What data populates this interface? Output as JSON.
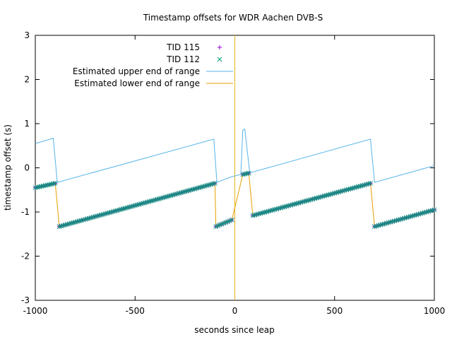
{
  "chart_data": {
    "type": "scatter",
    "title": "Timestamp offsets for WDR Aachen DVB-S",
    "xlabel": "seconds since leap",
    "ylabel": "timestamp offset (s)",
    "xlim": [
      -1000,
      1000
    ],
    "ylim": [
      -3,
      3
    ],
    "xticks": [
      -1000,
      -500,
      0,
      500,
      1000
    ],
    "yticks": [
      -3,
      -2,
      -1,
      0,
      1,
      2,
      3
    ],
    "grid": false,
    "legend_position": "top-center",
    "reference_line": {
      "x": 0,
      "color": "#e6b31a"
    },
    "series": [
      {
        "name": "TID 115",
        "kind": "points",
        "marker": "plus",
        "color": "#9400d3",
        "segments": [
          {
            "x_start": -1000,
            "x_end": -900,
            "y_start": -0.45,
            "y_end": -0.35
          },
          {
            "x_start": -880,
            "x_end": -100,
            "y_start": -1.33,
            "y_end": -0.35
          },
          {
            "x_start": -95,
            "x_end": -15,
            "y_start": -1.33,
            "y_end": -1.18
          },
          {
            "x_start": 40,
            "x_end": 70,
            "y_start": -0.15,
            "y_end": -0.12
          },
          {
            "x_start": 90,
            "x_end": 680,
            "y_start": -1.08,
            "y_end": -0.35
          },
          {
            "x_start": 700,
            "x_end": 1000,
            "y_start": -1.33,
            "y_end": -0.95
          }
        ]
      },
      {
        "name": "TID 112",
        "kind": "points",
        "marker": "cross",
        "color": "#009e73",
        "segments": [
          {
            "x_start": -1000,
            "x_end": -900,
            "y_start": -0.45,
            "y_end": -0.35
          },
          {
            "x_start": -880,
            "x_end": -100,
            "y_start": -1.33,
            "y_end": -0.35
          },
          {
            "x_start": -95,
            "x_end": -15,
            "y_start": -1.33,
            "y_end": -1.18
          },
          {
            "x_start": 40,
            "x_end": 70,
            "y_start": -0.15,
            "y_end": -0.12
          },
          {
            "x_start": 90,
            "x_end": 680,
            "y_start": -1.08,
            "y_end": -0.35
          },
          {
            "x_start": 700,
            "x_end": 1000,
            "y_start": -1.33,
            "y_end": -0.95
          }
        ]
      },
      {
        "name": "Estimated upper end of range",
        "kind": "line",
        "color": "#56b4e9",
        "x": [
          -1000,
          -910,
          -890,
          -105,
          -90,
          -15,
          30,
          40,
          50,
          75,
          85,
          680,
          700,
          1000
        ],
        "y": [
          0.55,
          0.67,
          -0.33,
          0.65,
          -0.33,
          -0.2,
          -0.15,
          0.85,
          0.88,
          -0.12,
          -0.1,
          0.65,
          -0.33,
          0.05
        ]
      },
      {
        "name": "Estimated lower end of range",
        "kind": "line",
        "color": "#e69f00",
        "x": [
          -1000,
          -900,
          -880,
          -100,
          -95,
          -15,
          40,
          70,
          90,
          680,
          700,
          1000
        ],
        "y": [
          -0.45,
          -0.35,
          -1.33,
          -0.35,
          -1.33,
          -1.18,
          -0.15,
          -0.12,
          -1.08,
          -0.35,
          -1.33,
          -0.95
        ]
      }
    ]
  }
}
